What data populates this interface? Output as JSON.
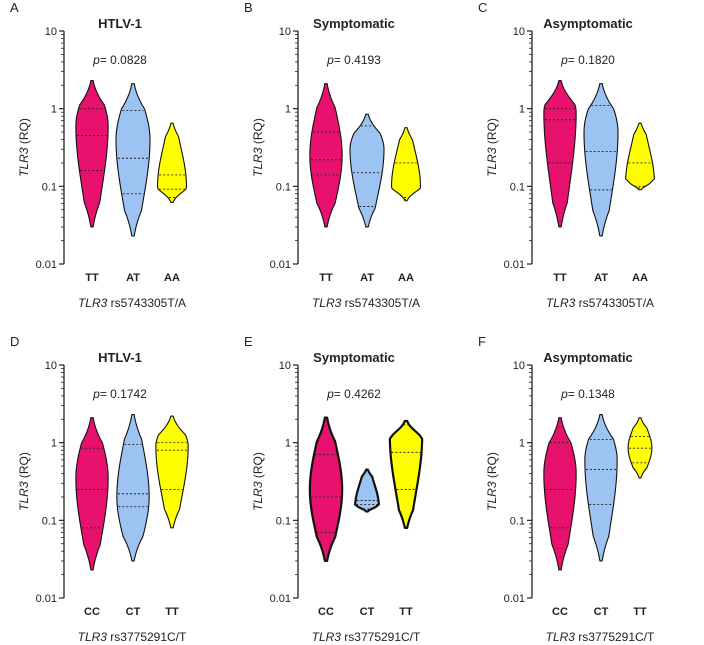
{
  "figure": {
    "y_axis_label": {
      "gene": "TLR3",
      "rest": " (RQ)"
    },
    "y_ticks": [
      {
        "value": 10,
        "label": "10"
      },
      {
        "value": 1,
        "label": "1"
      },
      {
        "value": 0.1,
        "label": "0.1"
      },
      {
        "value": 0.01,
        "label": "0.01"
      }
    ]
  },
  "colors": {
    "pink": "#e8126e",
    "blue": "#9dc3f2",
    "yellow": "#ffff00"
  },
  "chart_data": [
    {
      "panel": "A",
      "title": "HTLV-1",
      "p_prefix": "p",
      "p_value": "= 0.0828",
      "type": "violin",
      "yscale": "log",
      "ylim": [
        0.01,
        10
      ],
      "xlabel": {
        "gene": "TLR3",
        "rest": " rs5743305T/A"
      },
      "series": [
        {
          "name": "TT",
          "color": "pink",
          "min": 0.03,
          "max": 2.3,
          "q1": 0.16,
          "median": 0.45,
          "q3": 1.0,
          "peak": 0.6,
          "width": 0.95,
          "bold": false
        },
        {
          "name": "AT",
          "color": "blue",
          "min": 0.023,
          "max": 2.1,
          "q1": 0.08,
          "median": 0.23,
          "q3": 0.95,
          "peak": 0.4,
          "width": 1.0,
          "bold": false
        },
        {
          "name": "AA",
          "color": "yellow",
          "min": 0.062,
          "max": 0.65,
          "q1": 0.072,
          "median": 0.092,
          "q3": 0.14,
          "peak": 0.1,
          "width": 0.85,
          "bold": false
        }
      ]
    },
    {
      "panel": "B",
      "title": "Symptomatic",
      "p_prefix": "p",
      "p_value": "= 0.4193",
      "type": "violin",
      "yscale": "log",
      "ylim": [
        0.01,
        10
      ],
      "xlabel": {
        "gene": "TLR3",
        "rest": " rs5743305T/A"
      },
      "series": [
        {
          "name": "TT",
          "color": "pink",
          "min": 0.03,
          "max": 2.1,
          "q1": 0.14,
          "median": 0.22,
          "q3": 0.5,
          "peak": 0.25,
          "width": 0.95,
          "bold": false
        },
        {
          "name": "AT",
          "color": "blue",
          "min": 0.03,
          "max": 0.85,
          "q1": 0.055,
          "median": 0.15,
          "q3": 0.6,
          "peak": 0.3,
          "width": 1.0,
          "bold": false
        },
        {
          "name": "AA",
          "color": "yellow",
          "min": 0.065,
          "max": 0.57,
          "q1": 0.068,
          "median": 0.072,
          "q3": 0.2,
          "peak": 0.1,
          "width": 0.85,
          "bold": false
        }
      ]
    },
    {
      "panel": "C",
      "title": "Asymptomatic",
      "p_prefix": "p",
      "p_value": "= 0.1820",
      "type": "violin",
      "yscale": "log",
      "ylim": [
        0.01,
        10
      ],
      "xlabel": {
        "gene": "TLR3",
        "rest": " rs5743305T/A"
      },
      "series": [
        {
          "name": "TT",
          "color": "pink",
          "min": 0.03,
          "max": 2.3,
          "q1": 0.2,
          "median": 0.72,
          "q3": 1.0,
          "peak": 0.9,
          "width": 0.95,
          "bold": false
        },
        {
          "name": "AT",
          "color": "blue",
          "min": 0.023,
          "max": 2.1,
          "q1": 0.09,
          "median": 0.28,
          "q3": 1.1,
          "peak": 0.5,
          "width": 1.0,
          "bold": false
        },
        {
          "name": "AA",
          "color": "yellow",
          "min": 0.09,
          "max": 0.65,
          "q1": 0.095,
          "median": 0.1,
          "q3": 0.2,
          "peak": 0.11,
          "width": 0.85,
          "bold": false
        }
      ]
    },
    {
      "panel": "D",
      "title": "HTLV-1",
      "p_prefix": "p",
      "p_value": "= 0.1742",
      "type": "violin",
      "yscale": "log",
      "ylim": [
        0.01,
        10
      ],
      "xlabel": {
        "gene": "TLR3",
        "rest": " rs3775291C/T"
      },
      "series": [
        {
          "name": "CC",
          "color": "pink",
          "min": 0.023,
          "max": 2.1,
          "q1": 0.08,
          "median": 0.25,
          "q3": 0.85,
          "peak": 0.35,
          "width": 0.95,
          "bold": false
        },
        {
          "name": "CT",
          "color": "blue",
          "min": 0.03,
          "max": 2.3,
          "q1": 0.15,
          "median": 0.22,
          "q3": 0.95,
          "peak": 0.2,
          "width": 0.95,
          "bold": false
        },
        {
          "name": "TT",
          "color": "yellow",
          "min": 0.08,
          "max": 2.2,
          "q1": 0.25,
          "median": 0.8,
          "q3": 1.0,
          "peak": 0.9,
          "width": 0.95,
          "bold": false
        }
      ]
    },
    {
      "panel": "E",
      "title": "Symptomatic",
      "p_prefix": "p",
      "p_value": "= 0.4262",
      "type": "violin",
      "yscale": "log",
      "ylim": [
        0.01,
        10
      ],
      "xlabel": {
        "gene": "TLR3",
        "rest": " rs3775291C/T"
      },
      "series": [
        {
          "name": "CC",
          "color": "pink",
          "min": 0.03,
          "max": 2.1,
          "q1": 0.07,
          "median": 0.2,
          "q3": 0.7,
          "peak": 0.25,
          "width": 0.95,
          "bold": true
        },
        {
          "name": "CT",
          "color": "blue",
          "min": 0.13,
          "max": 0.45,
          "q1": 0.14,
          "median": 0.16,
          "q3": 0.18,
          "peak": 0.15,
          "width": 0.7,
          "bold": true
        },
        {
          "name": "TT",
          "color": "yellow",
          "min": 0.08,
          "max": 1.9,
          "q1": 0.25,
          "median": 0.75,
          "q3": 1.7,
          "peak": 1.2,
          "width": 0.95,
          "bold": true
        }
      ]
    },
    {
      "panel": "F",
      "title": "Asymptomatic",
      "p_prefix": "p",
      "p_value": "= 0.1348",
      "type": "violin",
      "yscale": "log",
      "ylim": [
        0.01,
        10
      ],
      "xlabel": {
        "gene": "TLR3",
        "rest": " rs3775291C/T"
      },
      "series": [
        {
          "name": "CC",
          "color": "pink",
          "min": 0.023,
          "max": 2.1,
          "q1": 0.08,
          "median": 0.25,
          "q3": 1.0,
          "peak": 0.4,
          "width": 0.95,
          "bold": false
        },
        {
          "name": "CT",
          "color": "blue",
          "min": 0.03,
          "max": 2.3,
          "q1": 0.16,
          "median": 0.45,
          "q3": 1.1,
          "peak": 0.6,
          "width": 0.95,
          "bold": false
        },
        {
          "name": "TT",
          "color": "yellow",
          "min": 0.35,
          "max": 2.1,
          "q1": 0.55,
          "median": 0.85,
          "q3": 1.2,
          "peak": 0.85,
          "width": 0.7,
          "bold": false
        }
      ]
    }
  ]
}
